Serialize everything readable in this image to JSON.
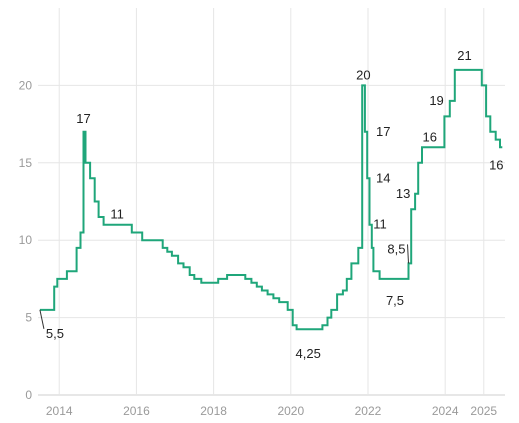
{
  "chart_data": {
    "type": "line",
    "title": "",
    "xlabel": "",
    "ylabel": "",
    "xlim": [
      2013.45,
      2025.55
    ],
    "ylim": [
      0,
      25
    ],
    "grid": true,
    "x_ticks": [
      {
        "value": 2014,
        "label": "2014"
      },
      {
        "value": 2016,
        "label": "2016"
      },
      {
        "value": 2018,
        "label": "2018"
      },
      {
        "value": 2020,
        "label": "2020"
      },
      {
        "value": 2022,
        "label": "2022"
      },
      {
        "value": 2024,
        "label": "2024"
      },
      {
        "value": 2025,
        "label": "2025"
      }
    ],
    "y_ticks": [
      {
        "value": 0,
        "label": "0"
      },
      {
        "value": 5,
        "label": "5"
      },
      {
        "value": 10,
        "label": "10"
      },
      {
        "value": 15,
        "label": "15"
      },
      {
        "value": 20,
        "label": "20"
      }
    ],
    "color": "#1fa67a",
    "series": [
      {
        "values": [
          [
            2013.5,
            5.5
          ],
          [
            2013.87,
            5.5
          ],
          [
            2013.87,
            7.0
          ],
          [
            2013.95,
            7.0
          ],
          [
            2013.95,
            7.5
          ],
          [
            2014.2,
            7.5
          ],
          [
            2014.2,
            8.0
          ],
          [
            2014.45,
            8.0
          ],
          [
            2014.45,
            9.5
          ],
          [
            2014.55,
            9.5
          ],
          [
            2014.55,
            10.5
          ],
          [
            2014.63,
            10.5
          ],
          [
            2014.63,
            17.0
          ],
          [
            2014.68,
            17.0
          ],
          [
            2014.68,
            15.0
          ],
          [
            2014.8,
            15.0
          ],
          [
            2014.8,
            14.0
          ],
          [
            2014.92,
            14.0
          ],
          [
            2014.92,
            12.5
          ],
          [
            2015.02,
            12.5
          ],
          [
            2015.02,
            11.5
          ],
          [
            2015.15,
            11.5
          ],
          [
            2015.15,
            11.0
          ],
          [
            2015.88,
            11.0
          ],
          [
            2015.88,
            10.5
          ],
          [
            2016.15,
            10.5
          ],
          [
            2016.15,
            10.0
          ],
          [
            2016.68,
            10.0
          ],
          [
            2016.68,
            9.5
          ],
          [
            2016.8,
            9.5
          ],
          [
            2016.8,
            9.25
          ],
          [
            2016.92,
            9.25
          ],
          [
            2016.92,
            9.0
          ],
          [
            2017.08,
            9.0
          ],
          [
            2017.08,
            8.5
          ],
          [
            2017.22,
            8.5
          ],
          [
            2017.22,
            8.25
          ],
          [
            2017.38,
            8.25
          ],
          [
            2017.38,
            7.75
          ],
          [
            2017.5,
            7.75
          ],
          [
            2017.5,
            7.5
          ],
          [
            2017.68,
            7.5
          ],
          [
            2017.68,
            7.25
          ],
          [
            2018.12,
            7.25
          ],
          [
            2018.12,
            7.5
          ],
          [
            2018.35,
            7.5
          ],
          [
            2018.35,
            7.75
          ],
          [
            2018.82,
            7.75
          ],
          [
            2018.82,
            7.5
          ],
          [
            2018.98,
            7.5
          ],
          [
            2018.98,
            7.25
          ],
          [
            2019.12,
            7.25
          ],
          [
            2019.12,
            7.0
          ],
          [
            2019.25,
            7.0
          ],
          [
            2019.25,
            6.75
          ],
          [
            2019.4,
            6.75
          ],
          [
            2019.4,
            6.5
          ],
          [
            2019.55,
            6.5
          ],
          [
            2019.55,
            6.25
          ],
          [
            2019.7,
            6.25
          ],
          [
            2019.7,
            6.0
          ],
          [
            2019.92,
            6.0
          ],
          [
            2019.92,
            5.5
          ],
          [
            2020.05,
            5.5
          ],
          [
            2020.05,
            4.5
          ],
          [
            2020.15,
            4.5
          ],
          [
            2020.15,
            4.25
          ],
          [
            2020.82,
            4.25
          ],
          [
            2020.82,
            4.5
          ],
          [
            2020.95,
            4.5
          ],
          [
            2020.95,
            5.0
          ],
          [
            2021.05,
            5.0
          ],
          [
            2021.05,
            5.5
          ],
          [
            2021.2,
            5.5
          ],
          [
            2021.2,
            6.5
          ],
          [
            2021.35,
            6.5
          ],
          [
            2021.35,
            6.75
          ],
          [
            2021.45,
            6.75
          ],
          [
            2021.45,
            7.5
          ],
          [
            2021.57,
            7.5
          ],
          [
            2021.57,
            8.5
          ],
          [
            2021.75,
            8.5
          ],
          [
            2021.75,
            9.5
          ],
          [
            2021.85,
            9.5
          ],
          [
            2021.85,
            20.0
          ],
          [
            2021.92,
            20.0
          ],
          [
            2021.92,
            17.0
          ],
          [
            2021.98,
            17.0
          ],
          [
            2021.98,
            14.0
          ],
          [
            2022.04,
            14.0
          ],
          [
            2022.04,
            11.0
          ],
          [
            2022.1,
            11.0
          ],
          [
            2022.1,
            9.5
          ],
          [
            2022.14,
            9.5
          ],
          [
            2022.14,
            8.0
          ],
          [
            2022.3,
            8.0
          ],
          [
            2022.3,
            7.5
          ],
          [
            2023.05,
            7.5
          ],
          [
            2023.05,
            8.5
          ],
          [
            2023.12,
            8.5
          ],
          [
            2023.12,
            12.0
          ],
          [
            2023.22,
            12.0
          ],
          [
            2023.22,
            13.0
          ],
          [
            2023.3,
            13.0
          ],
          [
            2023.3,
            15.0
          ],
          [
            2023.4,
            15.0
          ],
          [
            2023.4,
            16.0
          ],
          [
            2023.98,
            16.0
          ],
          [
            2023.98,
            18.0
          ],
          [
            2024.12,
            18.0
          ],
          [
            2024.12,
            19.0
          ],
          [
            2024.25,
            19.0
          ],
          [
            2024.25,
            21.0
          ],
          [
            2024.95,
            21.0
          ],
          [
            2024.95,
            20.0
          ],
          [
            2025.06,
            20.0
          ],
          [
            2025.06,
            18.0
          ],
          [
            2025.17,
            18.0
          ],
          [
            2025.17,
            17.0
          ],
          [
            2025.31,
            17.0
          ],
          [
            2025.31,
            16.5
          ],
          [
            2025.42,
            16.5
          ],
          [
            2025.42,
            16.0
          ],
          [
            2025.48,
            16.0
          ]
        ]
      }
    ],
    "annotations": [
      {
        "x": 2013.5,
        "y": 5.5,
        "label": "5,5",
        "dx": 6,
        "dy": 24,
        "anchor": "start",
        "leader": true
      },
      {
        "x": 2014.63,
        "y": 17.0,
        "label": "17",
        "dx": 0,
        "dy": -13,
        "anchor": "middle"
      },
      {
        "x": 2015.5,
        "y": 11.0,
        "label": "11",
        "dx": 0,
        "dy": -10,
        "anchor": "middle"
      },
      {
        "x": 2020.45,
        "y": 4.25,
        "label": "4,25",
        "dx": 0,
        "dy": 25,
        "anchor": "middle"
      },
      {
        "x": 2021.88,
        "y": 20.0,
        "label": "20",
        "dx": 0,
        "dy": -10,
        "anchor": "middle"
      },
      {
        "x": 2021.95,
        "y": 17.0,
        "label": "17",
        "dx": 10,
        "dy": 0,
        "anchor": "start"
      },
      {
        "x": 2022.0,
        "y": 14.0,
        "label": "14",
        "dx": 8,
        "dy": 0,
        "anchor": "start"
      },
      {
        "x": 2022.06,
        "y": 11.0,
        "label": "11",
        "dx": 3,
        "dy": 0,
        "anchor": "start"
      },
      {
        "x": 2022.7,
        "y": 7.5,
        "label": "7,5",
        "dx": 0,
        "dy": 22,
        "anchor": "middle"
      },
      {
        "x": 2023.05,
        "y": 8.5,
        "label": "8,5",
        "dx": -3,
        "dy": -14,
        "anchor": "end",
        "leader": true
      },
      {
        "x": 2023.15,
        "y": 13.0,
        "label": "13",
        "dx": -2,
        "dy": 0,
        "anchor": "end"
      },
      {
        "x": 2023.6,
        "y": 16.0,
        "label": "16",
        "dx": 0,
        "dy": -10,
        "anchor": "middle"
      },
      {
        "x": 2024.12,
        "y": 19.0,
        "label": "19",
        "dx": -6,
        "dy": 0,
        "anchor": "end"
      },
      {
        "x": 2024.5,
        "y": 21.0,
        "label": "21",
        "dx": 0,
        "dy": -14,
        "anchor": "middle"
      },
      {
        "x": 2025.48,
        "y": 16.0,
        "label": "16",
        "dx": -6,
        "dy": 18,
        "anchor": "middle"
      }
    ]
  }
}
